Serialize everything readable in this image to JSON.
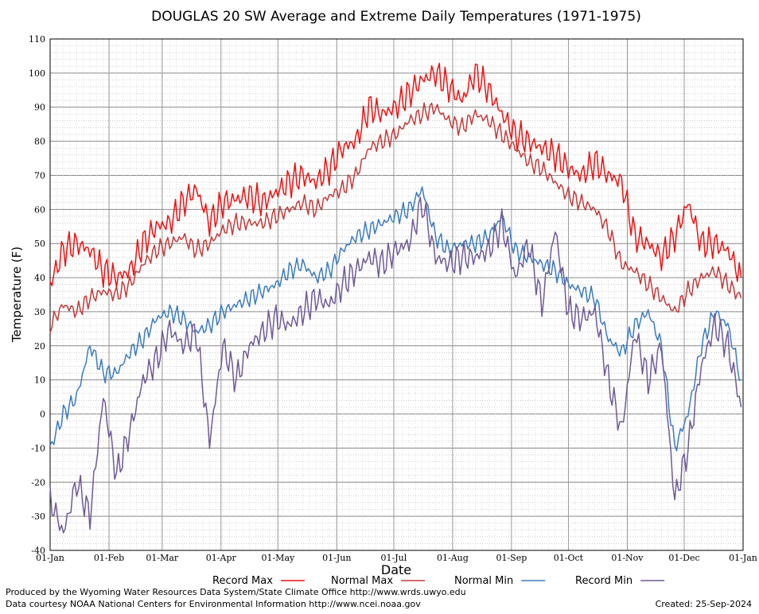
{
  "chart_data": {
    "type": "line",
    "title": "DOUGLAS 20 SW Average and Extreme Daily Temperatures (1971-1975)",
    "xlabel": "Date",
    "ylabel": "Temperature (F)",
    "ylim": [
      -40,
      110
    ],
    "yticks": [
      "110",
      "100",
      "90",
      "80",
      "70",
      "60",
      "50",
      "40",
      "30",
      "20",
      "10",
      "0",
      "-10",
      "-20",
      "-30",
      "-40"
    ],
    "xticks": [
      "01-Jan",
      "01-Feb",
      "01-Mar",
      "01-Apr",
      "01-May",
      "01-Jun",
      "01-Jul",
      "01-Aug",
      "01-Sep",
      "01-Oct",
      "01-Nov",
      "01-Dec",
      "01-Jan"
    ],
    "grid": true,
    "legend": "bottom",
    "series": [
      {
        "name": "Record Max",
        "color": "#ee1111",
        "x": [
          1,
          8,
          15,
          22,
          29,
          36,
          43,
          50,
          57,
          64,
          71,
          78,
          85,
          92,
          99,
          106,
          113,
          120,
          127,
          134,
          141,
          148,
          155,
          162,
          169,
          176,
          183,
          190,
          197,
          204,
          211,
          218,
          225,
          232,
          239,
          246,
          253,
          260,
          267,
          274,
          281,
          288,
          295,
          302,
          309,
          316,
          323,
          330,
          337,
          344,
          351,
          358,
          365
        ],
        "values": [
          38,
          48,
          50,
          48,
          42,
          40,
          42,
          50,
          55,
          56,
          62,
          66,
          56,
          62,
          63,
          64,
          62,
          65,
          68,
          70,
          68,
          72,
          78,
          80,
          90,
          88,
          90,
          94,
          98,
          100,
          96,
          92,
          100,
          95,
          88,
          82,
          80,
          78,
          76,
          72,
          70,
          74,
          70,
          68,
          52,
          50,
          46,
          52,
          62,
          50,
          50,
          48,
          40
        ]
      },
      {
        "name": "Normal Max",
        "color": "#c23b3b",
        "x": [
          1,
          8,
          15,
          22,
          29,
          36,
          43,
          50,
          57,
          64,
          71,
          78,
          85,
          92,
          99,
          106,
          113,
          120,
          127,
          134,
          141,
          148,
          155,
          162,
          169,
          176,
          183,
          190,
          197,
          204,
          211,
          218,
          225,
          232,
          239,
          246,
          253,
          260,
          267,
          274,
          281,
          288,
          295,
          302,
          309,
          316,
          323,
          330,
          337,
          344,
          351,
          358,
          365
        ],
        "values": [
          26,
          32,
          30,
          34,
          36,
          35,
          38,
          44,
          48,
          50,
          52,
          48,
          50,
          54,
          56,
          56,
          56,
          58,
          60,
          62,
          60,
          64,
          66,
          70,
          78,
          80,
          82,
          86,
          88,
          90,
          86,
          84,
          88,
          86,
          82,
          78,
          74,
          72,
          68,
          64,
          62,
          60,
          54,
          44,
          42,
          38,
          34,
          30,
          36,
          40,
          42,
          38,
          34
        ]
      },
      {
        "name": "Normal Min",
        "color": "#3b7bbf",
        "x": [
          1,
          8,
          15,
          22,
          29,
          36,
          43,
          50,
          57,
          64,
          71,
          78,
          85,
          92,
          99,
          106,
          113,
          120,
          127,
          134,
          141,
          148,
          155,
          162,
          169,
          176,
          183,
          190,
          197,
          204,
          211,
          218,
          225,
          232,
          239,
          246,
          253,
          260,
          267,
          274,
          281,
          288,
          295,
          302,
          309,
          316,
          323,
          330,
          337,
          344,
          351,
          358,
          365
        ],
        "values": [
          -10,
          0,
          5,
          20,
          12,
          12,
          18,
          22,
          28,
          30,
          28,
          24,
          26,
          30,
          32,
          34,
          36,
          38,
          42,
          44,
          40,
          42,
          48,
          52,
          54,
          56,
          58,
          60,
          66,
          52,
          48,
          50,
          50,
          52,
          58,
          48,
          46,
          44,
          42,
          38,
          36,
          34,
          22,
          18,
          26,
          30,
          20,
          -10,
          0,
          20,
          30,
          26,
          10
        ]
      },
      {
        "name": "Record Min",
        "color": "#6f5a96",
        "x": [
          1,
          8,
          15,
          22,
          29,
          36,
          43,
          50,
          57,
          64,
          71,
          78,
          85,
          92,
          99,
          106,
          113,
          120,
          127,
          134,
          141,
          148,
          155,
          162,
          169,
          176,
          183,
          190,
          197,
          204,
          211,
          218,
          225,
          232,
          239,
          246,
          253,
          260,
          267,
          274,
          281,
          288,
          295,
          302,
          309,
          316,
          323,
          330,
          337,
          344,
          351,
          358,
          365
        ],
        "values": [
          -25,
          -35,
          -20,
          -30,
          5,
          -18,
          -5,
          10,
          16,
          25,
          20,
          24,
          -8,
          20,
          10,
          20,
          24,
          28,
          26,
          30,
          34,
          32,
          38,
          42,
          46,
          44,
          48,
          50,
          62,
          46,
          44,
          46,
          46,
          48,
          56,
          40,
          50,
          32,
          54,
          30,
          28,
          30,
          10,
          -5,
          24,
          10,
          20,
          -25,
          -10,
          14,
          26,
          20,
          2
        ]
      }
    ]
  },
  "footer": {
    "produced_by": "Produced by the Wyoming Water Resources Data System/State Climate Office http://www.wrds.uwyo.edu",
    "courtesy": "Data courtesy NOAA National Centers for Environmental Information http://www.ncei.noaa.gov",
    "created": "Created:  25-Sep-2024"
  }
}
